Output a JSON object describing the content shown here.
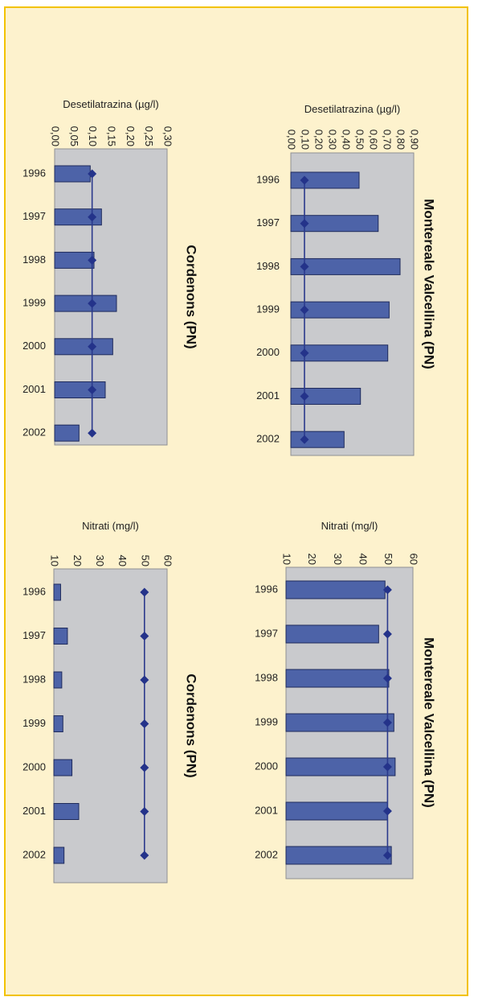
{
  "chart_data": [
    {
      "id": "desetilatrazina-cordenons",
      "type": "bar",
      "orientation": "horizontal",
      "title": "Cordenons (PN)",
      "ylabel": "Desetilatrazina (µg/l)",
      "categories": [
        "1996",
        "1997",
        "1998",
        "1999",
        "2000",
        "2001",
        "2002"
      ],
      "values": [
        0.095,
        0.125,
        0.105,
        0.165,
        0.155,
        0.135,
        0.065
      ],
      "line_values": [
        0.1,
        0.1,
        0.1,
        0.1,
        0.1,
        0.1,
        0.1
      ],
      "ylim": [
        0,
        0.3
      ],
      "ticks": [
        "0,00",
        "0,05",
        "0,10",
        "0,15",
        "0,20",
        "0,25",
        "0,30"
      ],
      "grid": false,
      "legend": "none"
    },
    {
      "id": "desetilatrazina-montereale",
      "type": "bar",
      "orientation": "horizontal",
      "title": "Montereale Valcellina (PN)",
      "ylabel": "Desetilatrazina (µg/l)",
      "categories": [
        "1996",
        "1997",
        "1998",
        "1999",
        "2000",
        "2001",
        "2002"
      ],
      "values": [
        0.5,
        0.64,
        0.8,
        0.72,
        0.71,
        0.51,
        0.39
      ],
      "line_values": [
        0.1,
        0.1,
        0.1,
        0.1,
        0.1,
        0.1,
        0.1
      ],
      "ylim": [
        0,
        0.9
      ],
      "ticks": [
        "0,00",
        "0,10",
        "0,20",
        "0,30",
        "0,40",
        "0,50",
        "0,60",
        "0,70",
        "0,80",
        "0,90"
      ],
      "grid": false,
      "legend": "none"
    },
    {
      "id": "nitrati-cordenons",
      "type": "bar",
      "orientation": "horizontal",
      "title": "Cordenons (PN)",
      "ylabel": "Nitrati (mg/l)",
      "categories": [
        "1996",
        "1997",
        "1998",
        "1999",
        "2000",
        "2001",
        "2002"
      ],
      "values": [
        13,
        16,
        13.5,
        14,
        18,
        21,
        14.5
      ],
      "line_values": [
        50,
        50,
        50,
        50,
        50,
        50,
        50
      ],
      "ylim": [
        10,
        60
      ],
      "ticks": [
        "10",
        "20",
        "30",
        "40",
        "50",
        "60"
      ],
      "grid": false,
      "legend": "none"
    },
    {
      "id": "nitrati-montereale",
      "type": "bar",
      "orientation": "horizontal",
      "title": "Montereale Valcellina (PN)",
      "ylabel": "Nitrati (mg/l)",
      "categories": [
        "1996",
        "1997",
        "1998",
        "1999",
        "2000",
        "2001",
        "2002"
      ],
      "values": [
        49,
        46.5,
        50.5,
        52.5,
        53,
        50,
        51.5
      ],
      "line_values": [
        50,
        50,
        50,
        50,
        50,
        50,
        50
      ],
      "ylim": [
        10,
        60
      ],
      "ticks": [
        "10",
        "20",
        "30",
        "40",
        "50",
        "60"
      ],
      "grid": false,
      "legend": "none"
    }
  ]
}
